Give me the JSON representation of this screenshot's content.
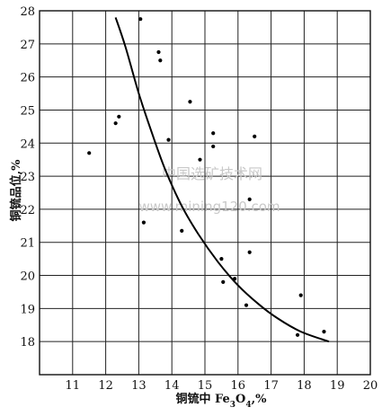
{
  "chart_data": {
    "type": "scatter",
    "xlabel_main": "铜锍中 Fe",
    "xlabel_sub1": "3",
    "xlabel_mid": "O",
    "xlabel_sub2": "4",
    "xlabel_tail": ",%",
    "ylabel": "铜锍品位,%",
    "xlim": [
      10,
      20
    ],
    "ylim": [
      17,
      28
    ],
    "x_ticks": [
      "11",
      "12",
      "13",
      "14",
      "15",
      "16",
      "17",
      "18",
      "19",
      "20"
    ],
    "y_ticks": [
      "18",
      "19",
      "20",
      "21",
      "22",
      "23",
      "24",
      "25",
      "26",
      "27",
      "28"
    ],
    "grid": true,
    "points": [
      {
        "x": 11.5,
        "y": 23.7
      },
      {
        "x": 12.3,
        "y": 24.6
      },
      {
        "x": 12.4,
        "y": 24.8
      },
      {
        "x": 13.05,
        "y": 27.75
      },
      {
        "x": 13.6,
        "y": 26.75
      },
      {
        "x": 13.65,
        "y": 26.5
      },
      {
        "x": 13.15,
        "y": 21.6
      },
      {
        "x": 13.9,
        "y": 24.1
      },
      {
        "x": 14.3,
        "y": 21.35
      },
      {
        "x": 14.55,
        "y": 25.25
      },
      {
        "x": 14.85,
        "y": 23.5
      },
      {
        "x": 15.25,
        "y": 24.3
      },
      {
        "x": 15.25,
        "y": 23.9
      },
      {
        "x": 15.5,
        "y": 20.5
      },
      {
        "x": 15.55,
        "y": 19.8
      },
      {
        "x": 15.9,
        "y": 19.9
      },
      {
        "x": 16.25,
        "y": 19.1
      },
      {
        "x": 16.35,
        "y": 22.3
      },
      {
        "x": 16.35,
        "y": 20.7
      },
      {
        "x": 16.5,
        "y": 24.2
      },
      {
        "x": 17.8,
        "y": 18.2
      },
      {
        "x": 17.9,
        "y": 19.4
      },
      {
        "x": 18.6,
        "y": 18.3
      }
    ],
    "trend_curve": [
      {
        "x": 12.3,
        "y": 27.8
      },
      {
        "x": 12.6,
        "y": 26.9
      },
      {
        "x": 13.0,
        "y": 25.5
      },
      {
        "x": 13.4,
        "y": 24.3
      },
      {
        "x": 13.8,
        "y": 23.2
      },
      {
        "x": 14.3,
        "y": 22.1
      },
      {
        "x": 14.8,
        "y": 21.25
      },
      {
        "x": 15.4,
        "y": 20.4
      },
      {
        "x": 16.0,
        "y": 19.7
      },
      {
        "x": 16.6,
        "y": 19.15
      },
      {
        "x": 17.2,
        "y": 18.7
      },
      {
        "x": 17.9,
        "y": 18.3
      },
      {
        "x": 18.75,
        "y": 18.0
      }
    ]
  },
  "watermark": {
    "line1": "中国选矿技术网",
    "line2": "www.mining120.com"
  }
}
